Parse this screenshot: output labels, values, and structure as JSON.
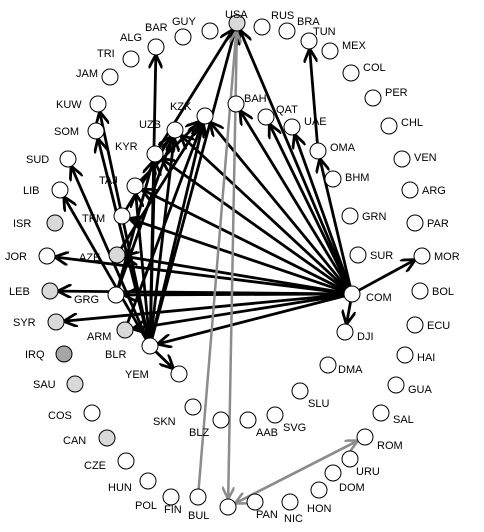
{
  "colors": {
    "edge_black": "#000000",
    "edge_gray": "#8c8c8c",
    "node_white": "#ffffff",
    "node_light": "#d9d9d9",
    "node_dark": "#a6a6a6"
  },
  "nodes": [
    {
      "id": "GUY",
      "label": "GUY",
      "fill": "white"
    },
    {
      "id": "BAR",
      "label": "BAR",
      "fill": "white"
    },
    {
      "id": "ALG",
      "label": "ALG",
      "fill": "white"
    },
    {
      "id": "TRI",
      "label": "TRI",
      "fill": "white"
    },
    {
      "id": "JAM",
      "label": "JAM",
      "fill": "white"
    },
    {
      "id": "KUW",
      "label": "KUW",
      "fill": "white"
    },
    {
      "id": "SOM",
      "label": "SOM",
      "fill": "white"
    },
    {
      "id": "SUD",
      "label": "SUD",
      "fill": "white"
    },
    {
      "id": "LIB",
      "label": "LIB",
      "fill": "white"
    },
    {
      "id": "ISR",
      "label": "ISR",
      "fill": "light"
    },
    {
      "id": "JOR",
      "label": "JOR",
      "fill": "white"
    },
    {
      "id": "LEB",
      "label": "LEB",
      "fill": "light"
    },
    {
      "id": "SYR",
      "label": "SYR",
      "fill": "light"
    },
    {
      "id": "IRQ",
      "label": "IRQ",
      "fill": "dark"
    },
    {
      "id": "SAU",
      "label": "SAU",
      "fill": "light"
    },
    {
      "id": "COS",
      "label": "COS",
      "fill": "white"
    },
    {
      "id": "CAN",
      "label": "CAN",
      "fill": "light"
    },
    {
      "id": "CZE",
      "label": "CZE",
      "fill": "white"
    },
    {
      "id": "HUN",
      "label": "HUN",
      "fill": "white"
    },
    {
      "id": "POL",
      "label": "POL",
      "fill": "white"
    },
    {
      "id": "FIN",
      "label": "FIN",
      "fill": "white"
    },
    {
      "id": "BUL",
      "label": "BUL",
      "fill": "white"
    },
    {
      "id": "PAN",
      "label": "PAN",
      "fill": "white"
    },
    {
      "id": "NIC",
      "label": "NIC",
      "fill": "white"
    },
    {
      "id": "HON",
      "label": "HON",
      "fill": "white"
    },
    {
      "id": "DOM",
      "label": "DOM",
      "fill": "white"
    },
    {
      "id": "URU",
      "label": "URU",
      "fill": "white"
    },
    {
      "id": "ROM",
      "label": "ROM",
      "fill": "white"
    },
    {
      "id": "SAL",
      "label": "SAL",
      "fill": "white"
    },
    {
      "id": "GUA",
      "label": "GUA",
      "fill": "white"
    },
    {
      "id": "HAI",
      "label": "HAI",
      "fill": "white"
    },
    {
      "id": "ECU",
      "label": "ECU",
      "fill": "white"
    },
    {
      "id": "BOL",
      "label": "BOL",
      "fill": "white"
    },
    {
      "id": "MOR",
      "label": "MOR",
      "fill": "white"
    },
    {
      "id": "PAR",
      "label": "PAR",
      "fill": "white"
    },
    {
      "id": "ARG",
      "label": "ARG",
      "fill": "white"
    },
    {
      "id": "VEN",
      "label": "VEN",
      "fill": "white"
    },
    {
      "id": "CHL",
      "label": "CHL",
      "fill": "white"
    },
    {
      "id": "PER",
      "label": "PER",
      "fill": "white"
    },
    {
      "id": "COL",
      "label": "COL",
      "fill": "white"
    },
    {
      "id": "MEX",
      "label": "MEX",
      "fill": "white"
    },
    {
      "id": "TUN",
      "label": "TUN",
      "fill": "white"
    },
    {
      "id": "BRA",
      "label": "BRA",
      "fill": "white"
    },
    {
      "id": "RUS",
      "label": "RUS",
      "fill": "white"
    },
    {
      "id": "USA",
      "label": "USA",
      "fill": "light"
    },
    {
      "id": "KZK",
      "label": "KZK",
      "fill": "white"
    },
    {
      "id": "BAH",
      "label": "BAH",
      "fill": "white"
    },
    {
      "id": "QAT",
      "label": "QAT",
      "fill": "white"
    },
    {
      "id": "UAE",
      "label": "UAE",
      "fill": "white"
    },
    {
      "id": "OMA",
      "label": "OMA",
      "fill": "white"
    },
    {
      "id": "BHM",
      "label": "BHM",
      "fill": "white"
    },
    {
      "id": "GRN",
      "label": "GRN",
      "fill": "white"
    },
    {
      "id": "SUR",
      "label": "SUR",
      "fill": "white"
    },
    {
      "id": "COM",
      "label": "COM",
      "fill": "white"
    },
    {
      "id": "DJI",
      "label": "DJI",
      "fill": "white"
    },
    {
      "id": "DMA",
      "label": "DMA",
      "fill": "white"
    },
    {
      "id": "SLU",
      "label": "SLU",
      "fill": "white"
    },
    {
      "id": "SVG",
      "label": "SVG",
      "fill": "white"
    },
    {
      "id": "AAB",
      "label": "AAB",
      "fill": "white"
    },
    {
      "id": "BLZ",
      "label": "BLZ",
      "fill": "white"
    },
    {
      "id": "SKN",
      "label": "SKN",
      "fill": "white"
    },
    {
      "id": "YEM",
      "label": "YEM",
      "fill": "white"
    },
    {
      "id": "UZB",
      "label": "UZB",
      "fill": "white"
    },
    {
      "id": "KYR",
      "label": "KYR",
      "fill": "white"
    },
    {
      "id": "TAJ",
      "label": "TAJ",
      "fill": "white"
    },
    {
      "id": "TKM",
      "label": "TKM",
      "fill": "white"
    },
    {
      "id": "AZE",
      "label": "AZE",
      "fill": "light"
    },
    {
      "id": "GRG",
      "label": "GRG",
      "fill": "white"
    },
    {
      "id": "ARM",
      "label": "ARM",
      "fill": "light"
    },
    {
      "id": "BLR",
      "label": "BLR",
      "fill": "white"
    }
  ],
  "edges": [
    {
      "from": "COM",
      "to": "USA",
      "color": "black"
    },
    {
      "from": "COM",
      "to": "KZK",
      "color": "black"
    },
    {
      "from": "COM",
      "to": "BAH",
      "color": "black"
    },
    {
      "from": "COM",
      "to": "QAT",
      "color": "black"
    },
    {
      "from": "COM",
      "to": "UAE",
      "color": "black"
    },
    {
      "from": "COM",
      "to": "OMA",
      "color": "black"
    },
    {
      "from": "COM",
      "to": "UZB",
      "color": "black"
    },
    {
      "from": "COM",
      "to": "KYR",
      "color": "black"
    },
    {
      "from": "COM",
      "to": "TAJ",
      "color": "black"
    },
    {
      "from": "COM",
      "to": "TKM",
      "color": "black"
    },
    {
      "from": "COM",
      "to": "AZE",
      "color": "black"
    },
    {
      "from": "COM",
      "to": "JOR",
      "color": "black"
    },
    {
      "from": "COM",
      "to": "LEB",
      "color": "black"
    },
    {
      "from": "COM",
      "to": "GRG",
      "color": "black"
    },
    {
      "from": "COM",
      "to": "SYR",
      "color": "black"
    },
    {
      "from": "COM",
      "to": "ARM",
      "color": "black"
    },
    {
      "from": "COM",
      "to": "BLR",
      "color": "black"
    },
    {
      "from": "COM",
      "to": "MOR",
      "color": "black"
    },
    {
      "from": "COM",
      "to": "DJI",
      "color": "black"
    },
    {
      "from": "BLR",
      "to": "ALG",
      "color": "black"
    },
    {
      "from": "BLR",
      "to": "KUW",
      "color": "black"
    },
    {
      "from": "BLR",
      "to": "SOM",
      "color": "black"
    },
    {
      "from": "BLR",
      "to": "SUD",
      "color": "black"
    },
    {
      "from": "BLR",
      "to": "LIB",
      "color": "black"
    },
    {
      "from": "BLR",
      "to": "UZB",
      "color": "black"
    },
    {
      "from": "BLR",
      "to": "KZK",
      "color": "black"
    },
    {
      "from": "BLR",
      "to": "KYR",
      "color": "black"
    },
    {
      "from": "BLR",
      "to": "TAJ",
      "color": "black"
    },
    {
      "from": "BLR",
      "to": "YEM",
      "color": "black"
    },
    {
      "from": "KYR",
      "to": "USA",
      "color": "black"
    },
    {
      "from": "TAJ",
      "to": "KZK",
      "color": "black"
    },
    {
      "from": "TKM",
      "to": "UZB",
      "color": "black"
    },
    {
      "from": "AZE",
      "to": "KZK",
      "color": "black"
    },
    {
      "from": "GRG",
      "to": "UZB",
      "color": "black"
    },
    {
      "from": "GRG",
      "to": "KYR",
      "color": "black"
    },
    {
      "from": "ARM",
      "to": "KZK",
      "color": "black"
    },
    {
      "from": "OMA",
      "to": "TUN",
      "color": "black"
    },
    {
      "from": "BLR",
      "to": "USA",
      "color": "black"
    },
    {
      "from": "FIN",
      "to": "USA",
      "color": "gray"
    },
    {
      "from": "USA",
      "to": "BUL",
      "color": "gray"
    },
    {
      "from": "BUL",
      "to": "ROM",
      "color": "gray"
    },
    {
      "from": "ROM",
      "to": "BUL",
      "color": "gray"
    }
  ]
}
